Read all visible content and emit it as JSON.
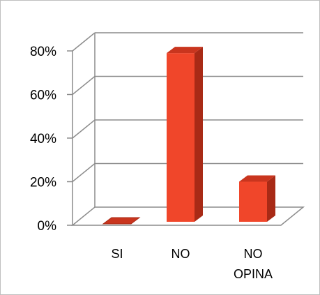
{
  "chart_data": {
    "type": "bar",
    "style": "3d-column",
    "categories": [
      "SI",
      "NO",
      "NO OPINA"
    ],
    "category_label_lines": [
      [
        "SI"
      ],
      [
        "NO"
      ],
      [
        "NO",
        "OPINA"
      ]
    ],
    "values": [
      0,
      79,
      20
    ],
    "yticks": [
      "0%",
      "20%",
      "40%",
      "60%",
      "80%"
    ],
    "ylim": [
      0,
      80
    ],
    "grid": true,
    "legend": "none",
    "title": "",
    "xlabel": "",
    "ylabel": "",
    "colors": {
      "bar_front": "#f0462a",
      "bar_side": "#a82a16",
      "bar_top": "#c9351e",
      "gridline": "#8c8c8c",
      "frame": "#bfbfbf"
    }
  }
}
